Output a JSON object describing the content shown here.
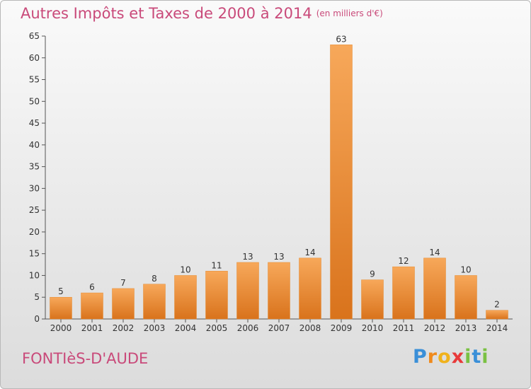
{
  "title": "Autres Impôts et Taxes de 2000 à 2014",
  "title_unit": "(en milliers d'€)",
  "commune": "FONTIèS-D'AUDE",
  "logo": {
    "letters": [
      "P",
      "r",
      "o",
      "x",
      "i",
      "t",
      "i"
    ],
    "colors": [
      "#3a8fd8",
      "#f08a1c",
      "#f0b21c",
      "#e83a3a",
      "#7ac143",
      "#3a8fd8",
      "#7ac143"
    ]
  },
  "colors": {
    "bar_light": "#f7a85a",
    "bar_dark": "#d9731c",
    "title": "#c94a7a"
  },
  "chart_data": {
    "type": "bar",
    "categories": [
      "2000",
      "2001",
      "2002",
      "2003",
      "2004",
      "2005",
      "2006",
      "2007",
      "2008",
      "2009",
      "2010",
      "2011",
      "2012",
      "2013",
      "2014"
    ],
    "values": [
      5,
      6,
      7,
      8,
      10,
      11,
      13,
      13,
      14,
      63,
      9,
      12,
      14,
      10,
      2
    ],
    "ylim": [
      0,
      65
    ],
    "yticks": [
      "0",
      "5",
      "10",
      "15",
      "20",
      "25",
      "30",
      "35",
      "40",
      "45",
      "50",
      "55",
      "60",
      "65"
    ],
    "grid": false,
    "data_labels": [
      "5",
      "6",
      "7",
      "8",
      "10",
      "11",
      "13",
      "13",
      "14",
      "63",
      "9",
      "12",
      "14",
      "10",
      "2"
    ]
  }
}
